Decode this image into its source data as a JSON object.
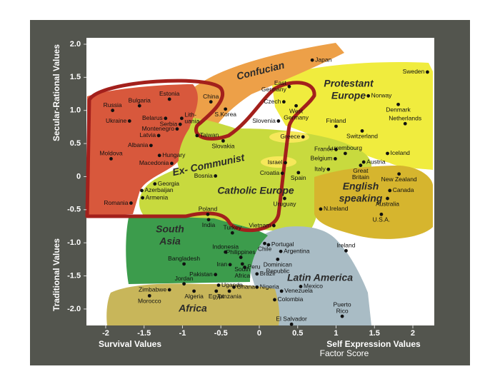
{
  "chart_data": {
    "type": "scatter",
    "x_label_left": "Survival Values",
    "x_label_right": "Self Expression Values",
    "x_axis_note": "Factor Score",
    "y_label_top": "Secular-Rational Values",
    "y_label_bottom": "Traditional Values",
    "xlim": [
      -2.25,
      2.25
    ],
    "ylim": [
      -2.25,
      2.1
    ],
    "xticks": [
      -2,
      -1.5,
      -1,
      -0.5,
      0,
      0.5,
      1,
      1.5,
      2
    ],
    "yticks": [
      {
        "value": 2,
        "label": "2.0"
      },
      1.5,
      {
        "value": 1,
        "label": "1.0"
      },
      0.5,
      0,
      -0.5,
      {
        "value": -1,
        "label": "-1.0"
      },
      -1.5,
      {
        "value": -2,
        "label": "-2.0"
      }
    ],
    "point_color": "#111111",
    "regions": [
      {
        "label": [
          "Protestant",
          "Europe"
        ],
        "color": "#f0ec3e"
      },
      {
        "label": [
          "Confucian"
        ],
        "color": "#eda048"
      },
      {
        "label": [
          "Catholic Europe"
        ],
        "color": "#c8da3e"
      },
      {
        "label": [
          "English",
          "speaking"
        ],
        "color": "#d6b52e"
      },
      {
        "label": [
          "Latin America"
        ],
        "color": "#a9bcc5"
      },
      {
        "label": [
          "South",
          "Asia"
        ],
        "color": "#3c9c4c"
      },
      {
        "label": [
          "Africa"
        ],
        "color": "#c8b65a"
      },
      {
        "label": [
          "Ex- Communist"
        ],
        "color": "#d8583c",
        "outline": "#a3201c"
      }
    ],
    "point_labels": [
      "Japan",
      "Sweden",
      "China",
      "S.Korea",
      [
        "East",
        "Germany"
      ],
      "Czech",
      [
        "West",
        "Germany"
      ],
      "Slovenia",
      "Norway",
      "Denmark",
      "Netherlands",
      "Finland",
      "Switzerland",
      "Greece",
      "France",
      "Luxembourg",
      "Belgium",
      "Iceland",
      "Austria",
      [
        "Great",
        "Britain"
      ],
      "Israel",
      "Italy",
      "Croatia",
      "Spain",
      "New Zealand",
      "Canada",
      "Australia",
      "U.S.A.",
      "N.Ireland",
      "Uruguay",
      "Ireland",
      "Poland",
      "India",
      "Vietnam",
      "Bosnia",
      "Slovakia",
      "Taiwan",
      [
        "Lith-",
        "uania"
      ],
      "Estonia",
      "Bulgaria",
      "Russia",
      "Ukraine",
      "Belarus",
      "Montenegro",
      "Serbia",
      "Latvia",
      "Albania",
      "Moldova",
      "Hungary",
      "Macedonia",
      "Georgia",
      "Azerbaijan",
      "Armenia",
      "Romania",
      "Turkey",
      "Indonesia",
      "Bangladesh",
      "Philippines",
      "Iran",
      [
        "South",
        "Africa"
      ],
      "Peru",
      "Pakistan",
      "Chile",
      "Portugal",
      "Argentina",
      [
        "Dominican",
        "Republic"
      ],
      "Brazil",
      "Jordan",
      "Uganda",
      "Zimbabwe",
      "Morocco",
      "Algeria",
      "Egypt",
      "Ghana",
      "Tanzania",
      "Nigeria",
      "Venezuela",
      "Mexico",
      "Colombia",
      "El Salvador",
      [
        "Puerto",
        "Rico"
      ]
    ],
    "x": [
      0.69,
      2.19,
      -0.63,
      -0.44,
      0.39,
      0.32,
      0.48,
      0.25,
      1.42,
      1.81,
      1.9,
      1.0,
      1.34,
      0.57,
      1.0,
      1.12,
      0.99,
      1.67,
      1.36,
      1.32,
      0.34,
      0.9,
      0.3,
      0.51,
      1.82,
      1.7,
      1.67,
      1.59,
      0.8,
      0.33,
      1.13,
      -0.67,
      -0.66,
      0.19,
      -0.57,
      -0.47,
      -0.81,
      -1.01,
      -1.17,
      -1.56,
      -1.91,
      -1.69,
      -1.22,
      -1.07,
      -1.03,
      -1.31,
      -1.41,
      -1.93,
      -1.3,
      -1.14,
      -1.36,
      -1.53,
      -1.52,
      -1.67,
      -0.35,
      -0.44,
      -0.98,
      -0.24,
      -0.38,
      -0.22,
      -0.19,
      -0.57,
      0.07,
      0.12,
      0.28,
      0.24,
      -0.03,
      -0.98,
      -0.53,
      -1.17,
      -1.43,
      -0.85,
      -0.56,
      -0.33,
      -0.39,
      -0.03,
      0.29,
      0.54,
      0.2,
      0.42,
      1.08
    ],
    "values": [
      1.76,
      1.58,
      1.13,
      1.02,
      1.36,
      1.13,
      1.07,
      0.84,
      1.22,
      1.09,
      0.8,
      0.76,
      0.69,
      0.6,
      0.41,
      0.35,
      0.27,
      0.35,
      0.22,
      0.17,
      0.21,
      0.11,
      0.05,
      0.06,
      0.04,
      -0.21,
      -0.33,
      -0.57,
      -0.49,
      -0.33,
      -1.12,
      -0.57,
      -0.65,
      -0.74,
      0.01,
      0.54,
      0.62,
      0.88,
      1.17,
      1.07,
      1.0,
      0.84,
      0.88,
      0.72,
      0.79,
      0.62,
      0.47,
      0.27,
      0.32,
      0.2,
      -0.11,
      -0.21,
      -0.32,
      -0.4,
      -0.85,
      -1.14,
      -1.32,
      -1.22,
      -1.33,
      -1.32,
      -1.37,
      -1.48,
      -1.01,
      -1.03,
      -1.13,
      -1.25,
      -1.47,
      -1.62,
      -1.64,
      -1.71,
      -1.8,
      -1.73,
      -1.73,
      -1.67,
      -1.73,
      -1.67,
      -1.73,
      -1.66,
      -1.86,
      -2.23,
      -2.11
    ]
  }
}
